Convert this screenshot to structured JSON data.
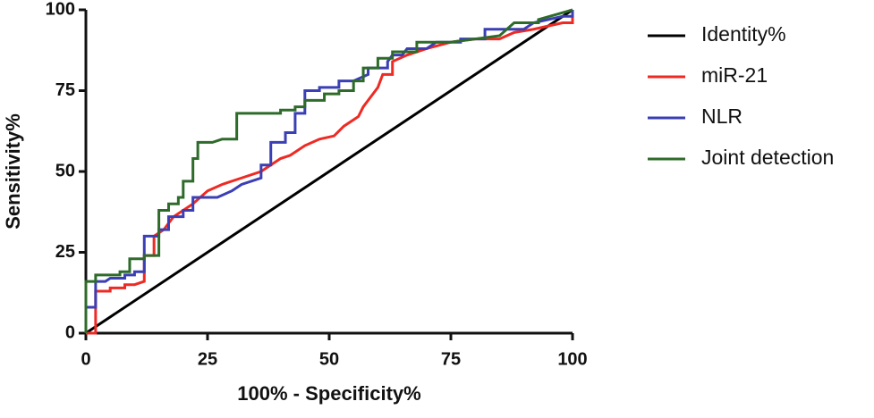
{
  "chart_data": {
    "type": "line",
    "x_label": "100% - Specificity%",
    "y_label": "Sensitivity%",
    "xlim": [
      0,
      100
    ],
    "ylim": [
      0,
      100
    ],
    "xticks": [
      0,
      25,
      50,
      75,
      100
    ],
    "yticks": [
      0,
      25,
      50,
      75,
      100
    ],
    "legend": "right",
    "series": [
      {
        "name": "Identity%",
        "color": "#000000",
        "x": [
          0,
          100
        ],
        "values": [
          0,
          100
        ]
      },
      {
        "name": "miR-21",
        "color": "#ee2a24",
        "x": [
          0,
          2,
          2,
          5,
          5,
          8,
          8,
          10,
          12,
          12,
          14,
          14,
          16,
          18,
          20,
          22,
          25,
          28,
          32,
          36,
          38,
          40,
          42,
          45,
          48,
          51,
          53,
          56,
          57,
          59,
          60,
          61,
          63,
          63,
          66,
          70,
          75,
          80,
          85,
          88,
          92,
          95,
          98,
          100,
          100
        ],
        "values": [
          0,
          0,
          13,
          13,
          14,
          14,
          15,
          15,
          16,
          24,
          24,
          30,
          32,
          36,
          38,
          40,
          44,
          46,
          48,
          50,
          52,
          54,
          55,
          58,
          60,
          61,
          64,
          67,
          70,
          74,
          76,
          80,
          80,
          84,
          86,
          88,
          90,
          91,
          91,
          93,
          94,
          95,
          96,
          96,
          100
        ]
      },
      {
        "name": "NLR",
        "color": "#3a3fb5",
        "x": [
          0,
          0,
          2,
          2,
          4,
          5,
          8,
          8,
          10,
          10,
          12,
          12,
          15,
          15,
          17,
          17,
          20,
          20,
          22,
          22,
          27,
          30,
          32,
          36,
          36,
          38,
          38,
          41,
          41,
          43,
          43,
          45,
          45,
          48,
          48,
          52,
          52,
          55,
          58,
          58,
          62,
          62,
          63,
          65,
          66,
          70,
          72,
          77,
          77,
          82,
          82,
          90,
          92,
          95,
          98,
          100,
          100
        ],
        "values": [
          0,
          8,
          8,
          16,
          16,
          17,
          17,
          18,
          18,
          19,
          19,
          30,
          30,
          32,
          32,
          36,
          36,
          38,
          38,
          42,
          42,
          44,
          46,
          48,
          52,
          52,
          59,
          59,
          62,
          62,
          68,
          68,
          75,
          75,
          76,
          76,
          78,
          78,
          80,
          82,
          82,
          84,
          86,
          86,
          88,
          88,
          90,
          90,
          91,
          91,
          94,
          94,
          96,
          97,
          98,
          98,
          100
        ]
      },
      {
        "name": "Joint detection",
        "color": "#2e6b2a",
        "x": [
          0,
          0,
          2,
          2,
          7,
          7,
          9,
          9,
          12,
          12,
          15,
          15,
          17,
          17,
          19,
          19,
          20,
          20,
          22,
          22,
          23,
          23,
          26,
          28,
          31,
          31,
          40,
          40,
          43,
          43,
          45,
          45,
          49,
          49,
          52,
          52,
          55,
          55,
          57,
          57,
          60,
          60,
          63,
          63,
          68,
          68,
          75,
          80,
          85,
          88,
          93,
          93,
          100
        ],
        "values": [
          0,
          16,
          16,
          18,
          18,
          19,
          19,
          23,
          23,
          24,
          24,
          38,
          38,
          40,
          40,
          42,
          42,
          47,
          47,
          54,
          54,
          59,
          59,
          60,
          60,
          68,
          68,
          69,
          69,
          70,
          70,
          72,
          72,
          74,
          74,
          75,
          75,
          78,
          78,
          82,
          82,
          85,
          85,
          87,
          87,
          90,
          90,
          91,
          92,
          96,
          96,
          97,
          100
        ]
      }
    ]
  }
}
